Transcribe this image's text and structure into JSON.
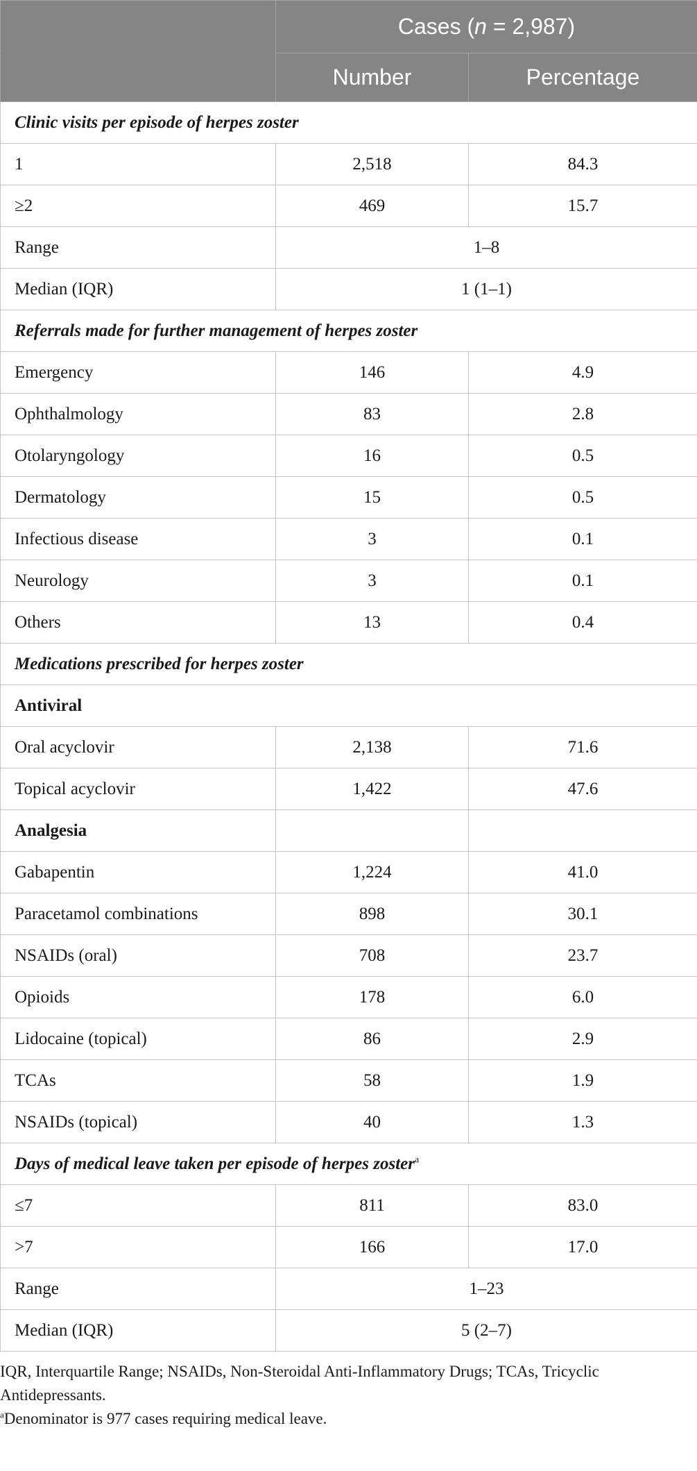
{
  "header": {
    "cases_label": "Cases (",
    "cases_n": "n",
    "cases_rest": " = 2,987)",
    "col_number": "Number",
    "col_percentage": "Percentage"
  },
  "sections": {
    "clinic_visits": {
      "title": "Clinic visits per episode of herpes zoster",
      "rows": [
        {
          "label": "1",
          "number": "2,518",
          "pct": "84.3"
        },
        {
          "label": "≥2",
          "number": "469",
          "pct": "15.7"
        }
      ],
      "range_label": "Range",
      "range_value": "1–8",
      "median_label": "Median (IQR)",
      "median_value": "1 (1–1)"
    },
    "referrals": {
      "title": "Referrals made for further management of herpes zoster",
      "rows": [
        {
          "label": "Emergency",
          "number": "146",
          "pct": "4.9"
        },
        {
          "label": "Ophthalmology",
          "number": "83",
          "pct": "2.8"
        },
        {
          "label": "Otolaryngology",
          "number": "16",
          "pct": "0.5"
        },
        {
          "label": "Dermatology",
          "number": "15",
          "pct": "0.5"
        },
        {
          "label": "Infectious disease",
          "number": "3",
          "pct": "0.1"
        },
        {
          "label": "Neurology",
          "number": "3",
          "pct": "0.1"
        },
        {
          "label": "Others",
          "number": "13",
          "pct": "0.4"
        }
      ]
    },
    "medications": {
      "title": "Medications prescribed for herpes zoster",
      "antiviral_label": "Antiviral",
      "antiviral_rows": [
        {
          "label": "Oral acyclovir",
          "number": "2,138",
          "pct": "71.6"
        },
        {
          "label": "Topical acyclovir",
          "number": "1,422",
          "pct": "47.6"
        }
      ],
      "analgesia_label": "Analgesia",
      "analgesia_rows": [
        {
          "label": "Gabapentin",
          "number": "1,224",
          "pct": "41.0"
        },
        {
          "label": "Paracetamol combinations",
          "number": "898",
          "pct": "30.1"
        },
        {
          "label": "NSAIDs (oral)",
          "number": "708",
          "pct": "23.7"
        },
        {
          "label": "Opioids",
          "number": "178",
          "pct": "6.0"
        },
        {
          "label": "Lidocaine (topical)",
          "number": "86",
          "pct": "2.9"
        },
        {
          "label": "TCAs",
          "number": "58",
          "pct": "1.9"
        },
        {
          "label": "NSAIDs (topical)",
          "number": "40",
          "pct": "1.3"
        }
      ]
    },
    "medical_leave": {
      "title": "Days of medical leave taken per episode of herpes zoster",
      "title_sup": "a",
      "rows": [
        {
          "label": "≤7",
          "number": "811",
          "pct": "83.0"
        },
        {
          "label": ">7",
          "number": "166",
          "pct": "17.0"
        }
      ],
      "range_label": "Range",
      "range_value": "1–23",
      "median_label": "Median (IQR)",
      "median_value": "5 (2–7)"
    }
  },
  "footnotes": {
    "abbreviations": "IQR, Interquartile Range; NSAIDs, Non-Steroidal Anti-Inflammatory Drugs; TCAs, Tricyclic Antidepressants.",
    "note_mark": "a",
    "note_text": "Denominator is 977 cases requiring medical leave."
  }
}
